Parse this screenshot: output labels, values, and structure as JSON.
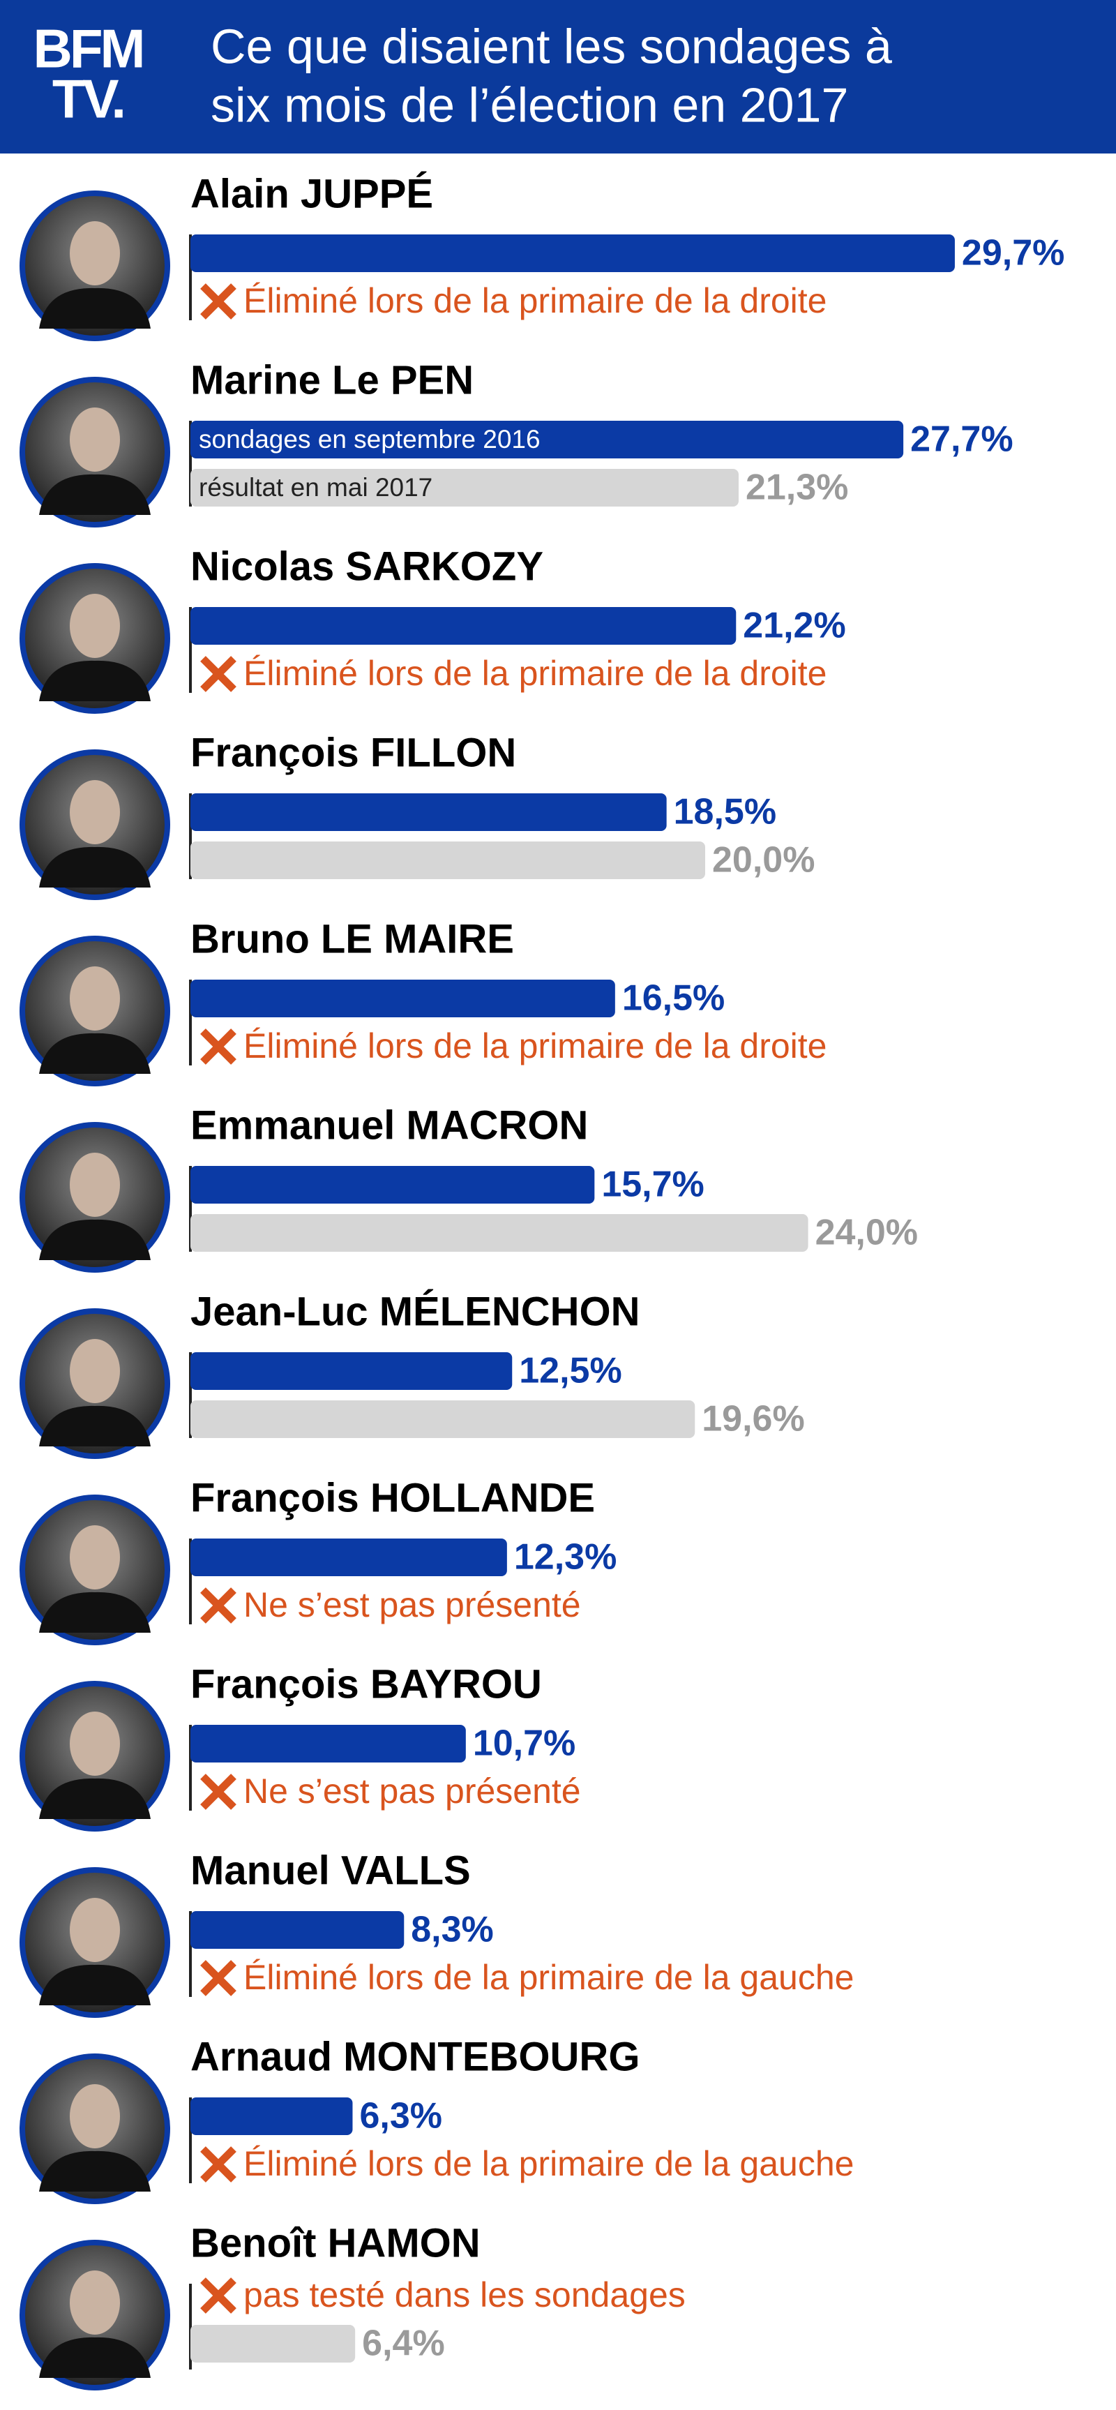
{
  "logo": [
    "BFM",
    "TV."
  ],
  "chart_data": {
    "type": "bar",
    "orientation": "horizontal",
    "title": [
      "Ce que disaient les sondages à",
      "six mois de l’élection en 2017"
    ],
    "categories": [
      "Alain JUPPÉ",
      "Marine Le PEN",
      "Nicolas SARKOZY",
      "François FILLON",
      "Bruno LE MAIRE",
      "Emmanuel MACRON",
      "Jean-Luc MÉLENCHON",
      "François HOLLANDE",
      "François BAYROU",
      "Manuel VALLS",
      "Arnaud MONTEBOURG",
      "Benoît HAMON"
    ],
    "series": [
      {
        "name": "sondages en septembre 2016",
        "color": "#0b3aa5",
        "values": [
          29.7,
          27.7,
          21.2,
          18.5,
          16.5,
          15.7,
          12.5,
          12.3,
          10.7,
          8.3,
          6.3,
          null
        ],
        "value_labels": [
          "29,7%",
          "27,7%",
          "21,2%",
          "18,5%",
          "16,5%",
          "15,7%",
          "12,5%",
          "12,3%",
          "10,7%",
          "8,3%",
          "6,3%",
          null
        ]
      },
      {
        "name": "résultat en mai 2017",
        "color": "#d6d6d6",
        "values": [
          null,
          21.3,
          null,
          20.0,
          null,
          24.0,
          19.6,
          null,
          null,
          null,
          null,
          6.4
        ],
        "value_labels": [
          null,
          "21,3%",
          null,
          "20,0%",
          null,
          "24,0%",
          "19,6%",
          null,
          null,
          null,
          null,
          "6,4%"
        ]
      }
    ],
    "notes": [
      "Éliminé lors de la primaire de la droite",
      null,
      "Éliminé lors de la primaire de la droite",
      null,
      "Éliminé lors de la primaire de la droite",
      null,
      null,
      "Ne s’est pas présenté",
      "Ne s’est pas présenté",
      "Éliminé lors de la primaire de la gauche",
      "Éliminé lors de la primaire de la gauche",
      "pas testé dans les sondages"
    ],
    "xlim": [
      0,
      30
    ]
  }
}
